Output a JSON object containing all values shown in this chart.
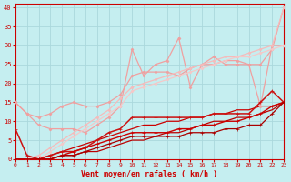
{
  "xlabel": "Vent moyen/en rafales ( km/h )",
  "bg_color": "#c5eef0",
  "grid_color": "#b0dde0",
  "xlim": [
    0,
    23
  ],
  "ylim": [
    0,
    41
  ],
  "yticks": [
    0,
    5,
    10,
    15,
    20,
    25,
    30,
    35,
    40
  ],
  "xticks": [
    0,
    1,
    2,
    3,
    4,
    5,
    6,
    7,
    8,
    9,
    10,
    11,
    12,
    13,
    14,
    15,
    16,
    17,
    18,
    19,
    20,
    21,
    22,
    23
  ],
  "lines": [
    {
      "x": [
        0,
        1,
        2,
        3,
        4,
        5,
        6,
        7,
        8,
        9,
        10,
        11,
        12,
        13,
        14,
        15,
        16,
        17,
        18,
        19,
        20,
        21,
        22,
        23
      ],
      "y": [
        15,
        12,
        11,
        12,
        14,
        15,
        14,
        14,
        15,
        17,
        22,
        23,
        23,
        23,
        22,
        24,
        25,
        27,
        25,
        25,
        25,
        25,
        29,
        40
      ],
      "color": "#f0a0a0",
      "lw": 0.9,
      "marker": "D",
      "ms": 1.5,
      "alpha": 1.0
    },
    {
      "x": [
        0,
        1,
        2,
        3,
        4,
        5,
        6,
        7,
        8,
        9,
        10,
        11,
        12,
        13,
        14,
        15,
        16,
        17,
        18,
        19,
        20,
        21,
        22,
        23
      ],
      "y": [
        15,
        12,
        9,
        8,
        8,
        8,
        7,
        9,
        11,
        14,
        29,
        22,
        25,
        26,
        32,
        19,
        25,
        25,
        26,
        26,
        25,
        14,
        30,
        30
      ],
      "color": "#f0a0a0",
      "lw": 0.9,
      "marker": "D",
      "ms": 1.5,
      "alpha": 1.0
    },
    {
      "x": [
        0,
        1,
        2,
        3,
        4,
        5,
        6,
        7,
        8,
        9,
        10,
        11,
        12,
        13,
        14,
        15,
        16,
        17,
        18,
        19,
        20,
        21,
        22,
        23
      ],
      "y": [
        0,
        0,
        1,
        3,
        5,
        7,
        9,
        11,
        13,
        16,
        19,
        20,
        21,
        22,
        23,
        24,
        25,
        26,
        27,
        27,
        28,
        29,
        30,
        40
      ],
      "color": "#f5bbbb",
      "lw": 0.9,
      "marker": "D",
      "ms": 1.5,
      "alpha": 1.0
    },
    {
      "x": [
        0,
        1,
        2,
        3,
        4,
        5,
        6,
        7,
        8,
        9,
        10,
        11,
        12,
        13,
        14,
        15,
        16,
        17,
        18,
        19,
        20,
        21,
        22,
        23
      ],
      "y": [
        0,
        0,
        0,
        2,
        4,
        6,
        8,
        10,
        12,
        14,
        18,
        19,
        20,
        21,
        22,
        23,
        24,
        25,
        26,
        27,
        27,
        28,
        29,
        30
      ],
      "color": "#f5c8c8",
      "lw": 0.9,
      "marker": "D",
      "ms": 1.5,
      "alpha": 1.0
    },
    {
      "x": [
        0,
        1,
        2,
        3,
        4,
        5,
        6,
        7,
        8,
        9,
        10,
        11,
        12,
        13,
        14,
        15,
        16,
        17,
        18,
        19,
        20,
        21,
        22,
        23
      ],
      "y": [
        8,
        1,
        0,
        1,
        2,
        2,
        3,
        5,
        7,
        8,
        11,
        11,
        11,
        11,
        11,
        11,
        11,
        12,
        12,
        12,
        12,
        15,
        18,
        15
      ],
      "color": "#cc1111",
      "lw": 1.1,
      "marker": "+",
      "ms": 3.5,
      "alpha": 1.0
    },
    {
      "x": [
        0,
        1,
        2,
        3,
        4,
        5,
        6,
        7,
        8,
        9,
        10,
        11,
        12,
        13,
        14,
        15,
        16,
        17,
        18,
        19,
        20,
        21,
        22,
        23
      ],
      "y": [
        0,
        0,
        0,
        0,
        1,
        2,
        3,
        4,
        5,
        6,
        7,
        7,
        7,
        7,
        8,
        8,
        9,
        9,
        10,
        10,
        11,
        12,
        14,
        15
      ],
      "color": "#cc0000",
      "lw": 1.0,
      "marker": "+",
      "ms": 3.0,
      "alpha": 1.0
    },
    {
      "x": [
        0,
        1,
        2,
        3,
        4,
        5,
        6,
        7,
        8,
        9,
        10,
        11,
        12,
        13,
        14,
        15,
        16,
        17,
        18,
        19,
        20,
        21,
        22,
        23
      ],
      "y": [
        0,
        0,
        0,
        1,
        2,
        3,
        4,
        5,
        6,
        7,
        8,
        9,
        9,
        10,
        10,
        11,
        11,
        12,
        12,
        13,
        13,
        14,
        14,
        15
      ],
      "color": "#cc0000",
      "lw": 0.9,
      "marker": null,
      "ms": 0,
      "alpha": 1.0
    },
    {
      "x": [
        0,
        1,
        2,
        3,
        4,
        5,
        6,
        7,
        8,
        9,
        10,
        11,
        12,
        13,
        14,
        15,
        16,
        17,
        18,
        19,
        20,
        21,
        22,
        23
      ],
      "y": [
        0,
        0,
        0,
        0,
        1,
        1,
        2,
        3,
        4,
        5,
        6,
        6,
        6,
        6,
        6,
        7,
        7,
        7,
        8,
        8,
        9,
        9,
        12,
        15
      ],
      "color": "#aa0000",
      "lw": 0.9,
      "marker": "+",
      "ms": 2.5,
      "alpha": 1.0
    },
    {
      "x": [
        0,
        1,
        2,
        3,
        4,
        5,
        6,
        7,
        8,
        9,
        10,
        11,
        12,
        13,
        14,
        15,
        16,
        17,
        18,
        19,
        20,
        21,
        22,
        23
      ],
      "y": [
        0,
        0,
        0,
        0,
        1,
        1,
        2,
        2,
        3,
        4,
        5,
        5,
        6,
        7,
        7,
        8,
        9,
        10,
        10,
        11,
        11,
        12,
        13,
        15
      ],
      "color": "#bb0000",
      "lw": 0.9,
      "marker": null,
      "ms": 0,
      "alpha": 1.0
    }
  ]
}
